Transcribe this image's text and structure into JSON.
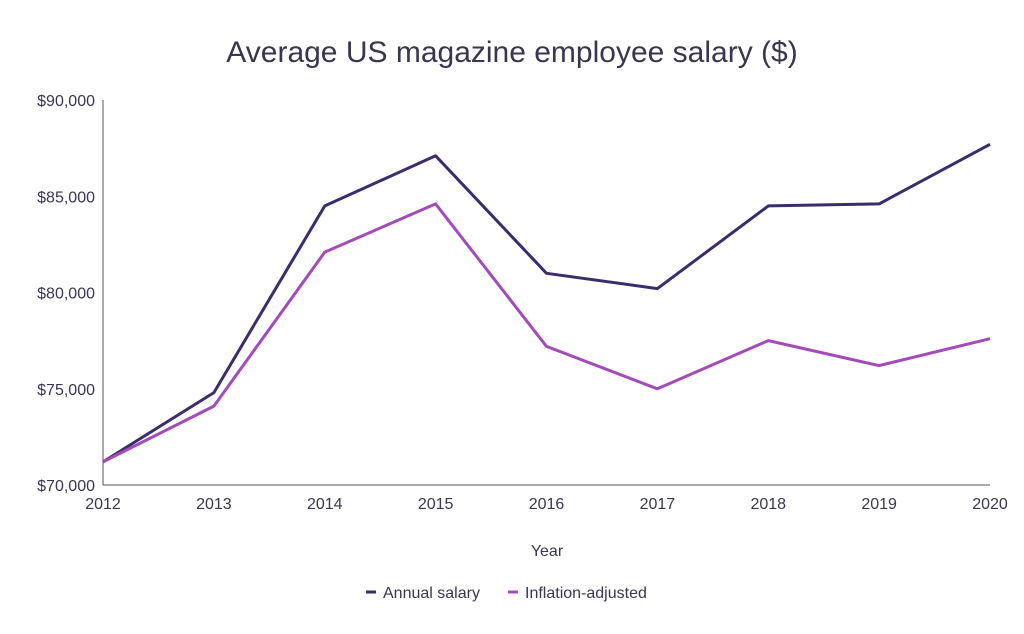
{
  "chart_data": {
    "type": "line",
    "title": "Average US magazine employee salary ($)",
    "xlabel": "Year",
    "ylabel": "",
    "categories": [
      "2012",
      "2013",
      "2014",
      "2015",
      "2016",
      "2017",
      "2018",
      "2019",
      "2020"
    ],
    "ylim": [
      70000,
      90000
    ],
    "yticks": [
      70000,
      75000,
      80000,
      85000,
      90000
    ],
    "ytick_labels": [
      "$70,000",
      "$75,000",
      "$80,000",
      "$85,000",
      "$90,000"
    ],
    "grid": false,
    "legend_position": "bottom",
    "series": [
      {
        "name": "Annual salary",
        "color": "#3d2c6b",
        "values": [
          71200,
          74800,
          84500,
          87100,
          81000,
          80200,
          84500,
          84600,
          87700
        ]
      },
      {
        "name": "Inflation-adjusted",
        "color": "#a34bb8",
        "values": [
          71200,
          74100,
          82100,
          84600,
          77200,
          75000,
          77500,
          76200,
          77600
        ]
      }
    ]
  }
}
